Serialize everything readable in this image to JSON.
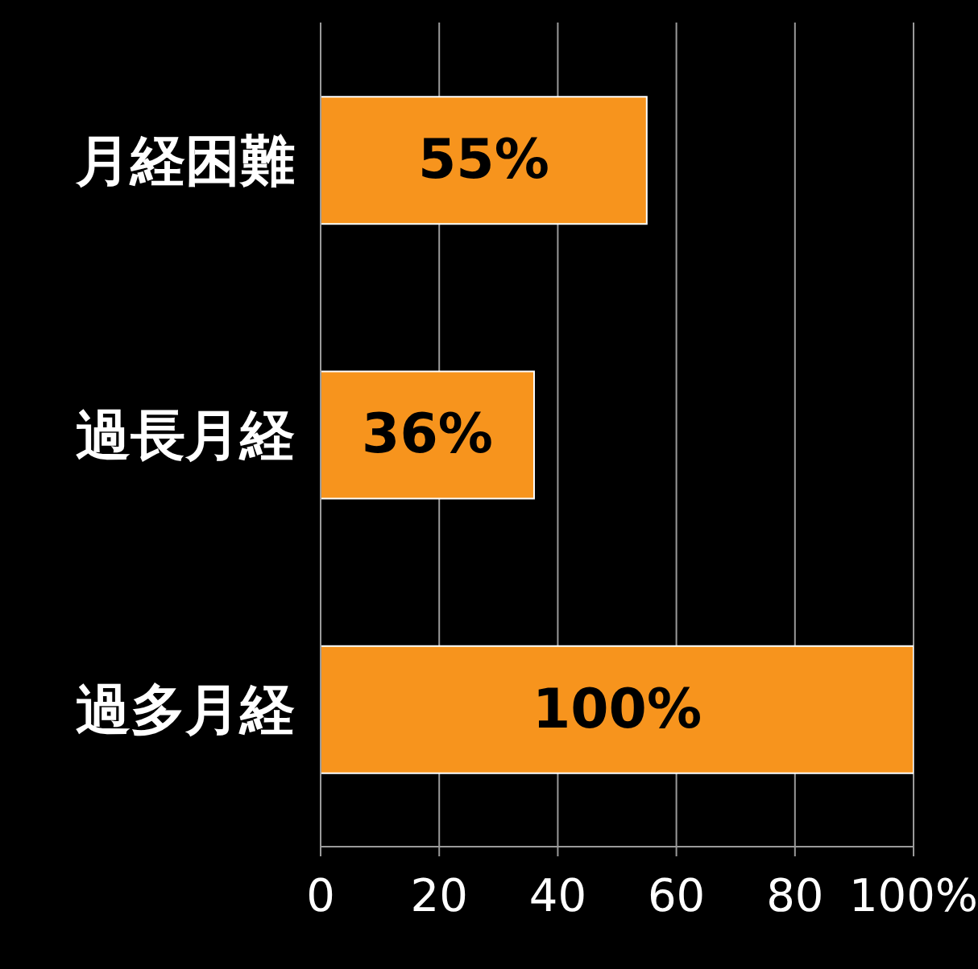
{
  "chart_data": {
    "type": "bar",
    "orientation": "horizontal",
    "categories": [
      "月経困難",
      "過長月経",
      "過多月経"
    ],
    "values": [
      55,
      36,
      100
    ],
    "value_labels": [
      "55%",
      "36%",
      "100%"
    ],
    "color": "#f7941d",
    "xlim": [
      0,
      100
    ],
    "xticks": [
      0,
      20,
      40,
      60,
      80,
      {
        "value": 100,
        "label": "100%"
      }
    ],
    "grid": "x"
  }
}
